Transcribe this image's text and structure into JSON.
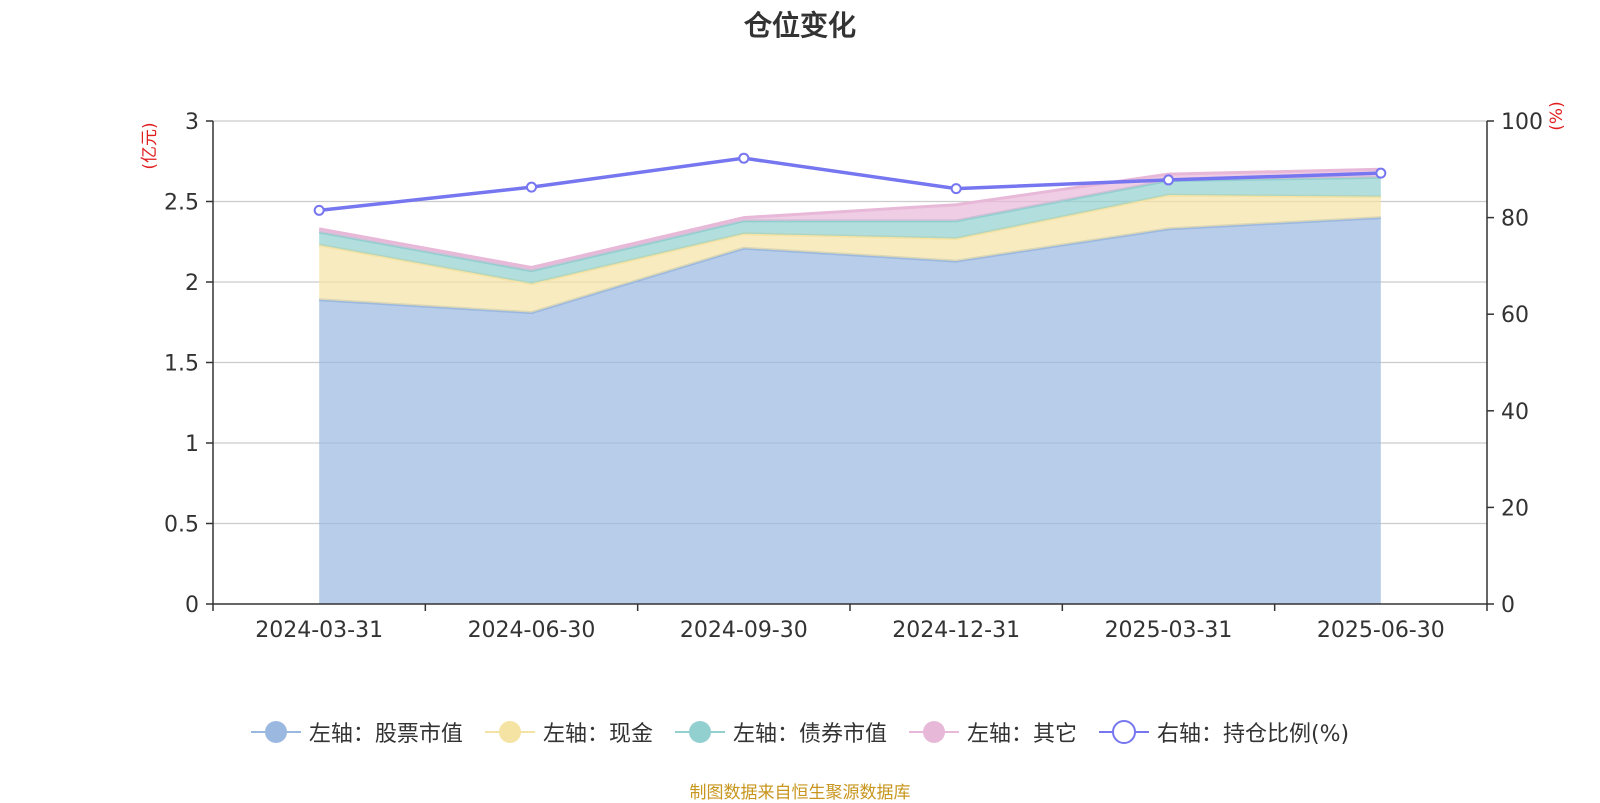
{
  "chart_data": {
    "type": "area",
    "title": "仓位变化",
    "categories": [
      "2024-03-31",
      "2024-06-30",
      "2024-09-30",
      "2024-12-31",
      "2025-03-31",
      "2025-06-30"
    ],
    "left_axis": {
      "unit": "(亿元)",
      "ylim": [
        0,
        3
      ],
      "ticks": [
        "0",
        "0.5",
        "1",
        "1.5",
        "2",
        "2.5",
        "3"
      ]
    },
    "right_axis": {
      "unit": "(%)",
      "ylim": [
        0,
        100
      ],
      "ticks": [
        "0",
        "20",
        "40",
        "60",
        "80",
        "100"
      ]
    },
    "stacked_series": [
      {
        "name": "左轴：股票市值",
        "color": "#9ab8e0",
        "values": [
          1.89,
          1.81,
          2.21,
          2.13,
          2.33,
          2.4
        ]
      },
      {
        "name": "左轴：现金",
        "color": "#f5e3a4",
        "values": [
          0.34,
          0.18,
          0.09,
          0.14,
          0.21,
          0.13
        ]
      },
      {
        "name": "左轴：债券市值",
        "color": "#92d0d0",
        "values": [
          0.08,
          0.08,
          0.08,
          0.11,
          0.09,
          0.12
        ]
      },
      {
        "name": "左轴：其它",
        "color": "#e8b8d8",
        "values": [
          0.02,
          0.02,
          0.02,
          0.1,
          0.04,
          0.05
        ]
      }
    ],
    "line_series": {
      "name": "右轴：持仓比例(%)",
      "color": "#7676f0",
      "values": [
        81.5,
        86.3,
        92.3,
        86.0,
        87.8,
        89.2
      ]
    },
    "grid": true,
    "legend_position": "bottom"
  },
  "footer": {
    "source": "制图数据来自恒生聚源数据库"
  }
}
